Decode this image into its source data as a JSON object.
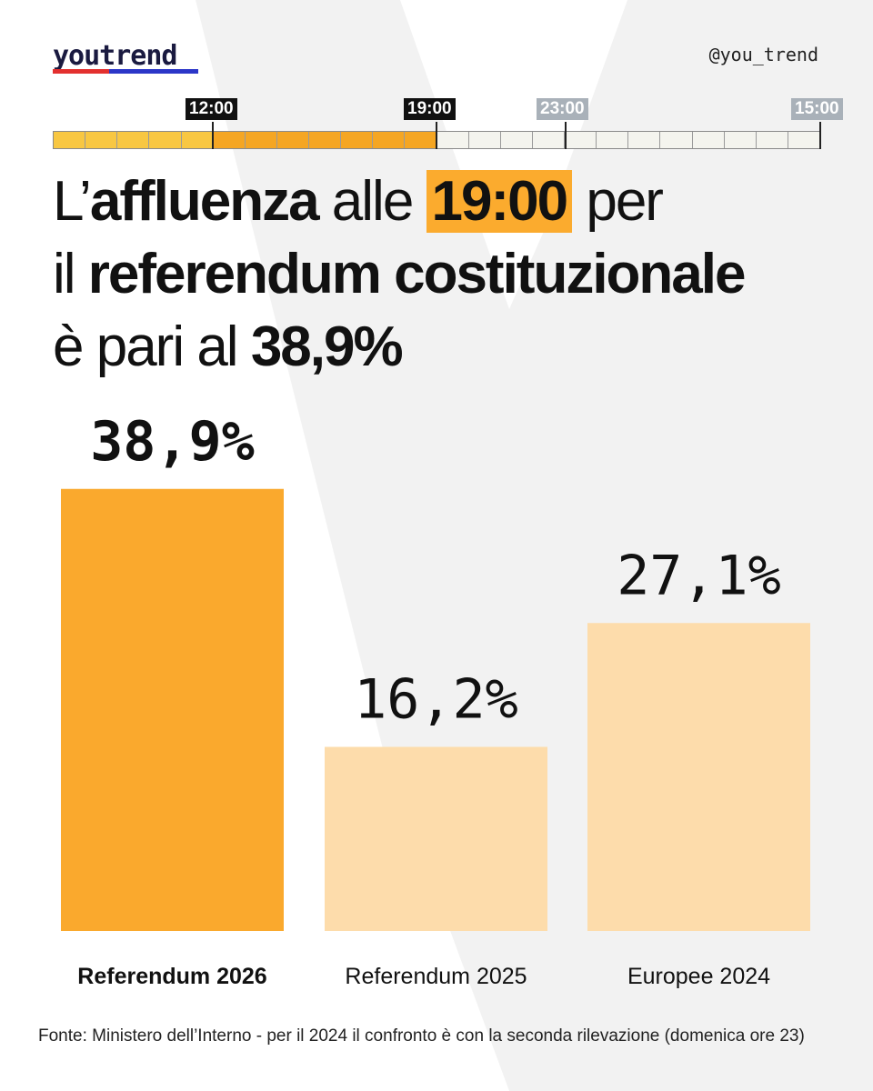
{
  "brand": {
    "logo": "youtrend",
    "handle": "@you_trend"
  },
  "timeline": {
    "labels": [
      {
        "text": "12:00",
        "state": "past"
      },
      {
        "text": "19:00",
        "state": "current"
      },
      {
        "text": "23:00",
        "state": "future"
      },
      {
        "text": "15:00",
        "state": "future"
      }
    ],
    "segments": 24,
    "filled_phase1": 5,
    "filled_phase2": 7,
    "colors": {
      "phase1": "#f8c742",
      "phase2": "#f5a623",
      "empty": "#f4f4ee",
      "label_dark": "#111111",
      "label_future": "#a9b1b9"
    }
  },
  "headline": {
    "line1_a": "L’",
    "line1_b": "affluenza",
    "line1_c": " alle ",
    "line1_d": "19:00",
    "line1_e": " per",
    "line2_a": "il ",
    "line2_b": "referendum costituzionale",
    "line3_a": "è pari al ",
    "line3_b": "38,9%"
  },
  "chart_data": {
    "type": "bar",
    "title": "L’affluenza alle 19:00 per il referendum costituzionale è pari al 38,9%",
    "categories": [
      "Referendum 2026",
      "Referendum 2025",
      "Europee 2024"
    ],
    "values": [
      38.9,
      16.2,
      27.1
    ],
    "value_labels": [
      "38,9%",
      "16,2%",
      "27,1%"
    ],
    "highlight_index": 0,
    "colors": [
      "#faa92d",
      "#fddcab",
      "#fddcab"
    ],
    "ylim": [
      0,
      40.8
    ],
    "xlabel": "",
    "ylabel": ""
  },
  "footer": {
    "source": "Fonte: Ministero dell’Interno -  per il 2024 il confronto è con la seconda rilevazione (domenica ore 23)"
  }
}
